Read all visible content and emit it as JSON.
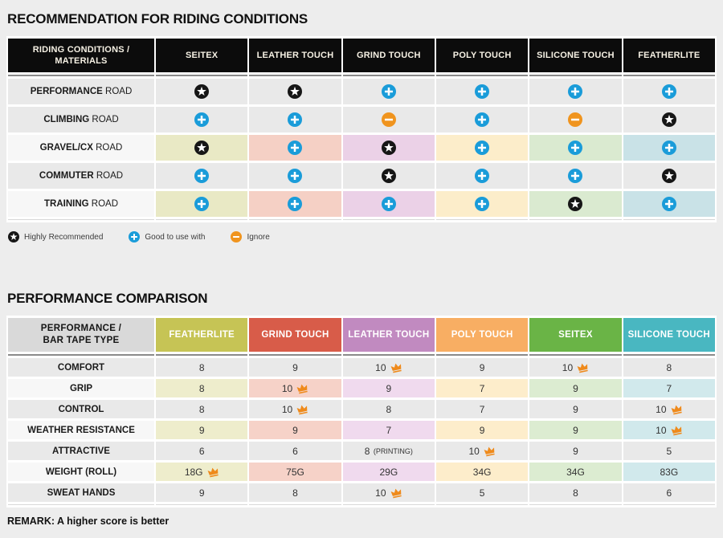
{
  "icons": {
    "star_bg": "#161616",
    "plus_bg": "#1a9cd9",
    "minus_bg": "#f0941e",
    "glyph": "#ffffff",
    "crown": "#ef8a1b"
  },
  "recommendation": {
    "title": "RECOMMENDATION FOR RIDING CONDITIONS",
    "corner": {
      "line1": "RIDING CONDITIONS /",
      "line2": "MATERIALS"
    },
    "columns": [
      {
        "label": "SEITEX",
        "tint": "#e9e9c5"
      },
      {
        "label": "LEATHER TOUCH",
        "tint": "#f5d0c5"
      },
      {
        "label": "GRIND TOUCH",
        "tint": "#ebd1e7"
      },
      {
        "label": "POLY TOUCH",
        "tint": "#fcedca"
      },
      {
        "label": "SILICONE TOUCH",
        "tint": "#daead0"
      },
      {
        "label": "FEATHERLITE",
        "tint": "#c9e2e7"
      }
    ],
    "rows": [
      {
        "name": "PERFORMANCE",
        "type": "ROAD",
        "tinted": false,
        "cells": [
          "star",
          "star",
          "plus",
          "plus",
          "plus",
          "plus"
        ]
      },
      {
        "name": "CLIMBING",
        "type": "ROAD",
        "tinted": false,
        "cells": [
          "plus",
          "plus",
          "minus",
          "plus",
          "minus",
          "star"
        ]
      },
      {
        "name": "GRAVEL/CX",
        "type": "ROAD",
        "tinted": true,
        "cells": [
          "star",
          "plus",
          "star",
          "plus",
          "plus",
          "plus"
        ]
      },
      {
        "name": "COMMUTER",
        "type": "ROAD",
        "tinted": false,
        "cells": [
          "plus",
          "plus",
          "star",
          "plus",
          "plus",
          "star"
        ]
      },
      {
        "name": "TRAINING",
        "type": "ROAD",
        "tinted": true,
        "cells": [
          "plus",
          "plus",
          "plus",
          "plus",
          "star",
          "plus"
        ]
      }
    ],
    "legend": [
      {
        "icon": "star",
        "label": "Highly Recommended"
      },
      {
        "icon": "plus",
        "label": "Good to use with"
      },
      {
        "icon": "minus",
        "label": "Ignore"
      }
    ]
  },
  "performance": {
    "title": "PERFORMANCE COMPARISON",
    "corner": {
      "line1": "PERFORMANCE /",
      "line2": "BAR TAPE TYPE"
    },
    "columns": [
      {
        "label": "FEATHERLITE",
        "color": "#c6c455",
        "tint": "#eeedcc"
      },
      {
        "label": "GRIND TOUCH",
        "color": "#d85c49",
        "tint": "#f6d2c8"
      },
      {
        "label": "LEATHER TOUCH",
        "color": "#c18ac0",
        "tint": "#f0daee"
      },
      {
        "label": "POLY TOUCH",
        "color": "#f8ae63",
        "tint": "#fdedcb"
      },
      {
        "label": "SEITEX",
        "color": "#6ab446",
        "tint": "#dcecd1"
      },
      {
        "label": "SILICONE TOUCH",
        "color": "#49b7c1",
        "tint": "#d1e9ec"
      }
    ],
    "rows": [
      {
        "label": "COMFORT",
        "tinted": false,
        "cells": [
          {
            "v": "8"
          },
          {
            "v": "9"
          },
          {
            "v": "10",
            "crown": true
          },
          {
            "v": "9"
          },
          {
            "v": "10",
            "crown": true
          },
          {
            "v": "8"
          }
        ]
      },
      {
        "label": "GRIP",
        "tinted": true,
        "cells": [
          {
            "v": "8"
          },
          {
            "v": "10",
            "crown": true
          },
          {
            "v": "9"
          },
          {
            "v": "7"
          },
          {
            "v": "9"
          },
          {
            "v": "7"
          }
        ]
      },
      {
        "label": "CONTROL",
        "tinted": false,
        "cells": [
          {
            "v": "8"
          },
          {
            "v": "10",
            "crown": true
          },
          {
            "v": "8"
          },
          {
            "v": "7"
          },
          {
            "v": "9"
          },
          {
            "v": "10",
            "crown": true
          }
        ]
      },
      {
        "label": "WEATHER RESISTANCE",
        "tinted": true,
        "cells": [
          {
            "v": "9"
          },
          {
            "v": "9"
          },
          {
            "v": "7"
          },
          {
            "v": "9"
          },
          {
            "v": "9"
          },
          {
            "v": "10",
            "crown": true
          }
        ]
      },
      {
        "label": "ATTRACTIVE",
        "tinted": false,
        "cells": [
          {
            "v": "6"
          },
          {
            "v": "6"
          },
          {
            "v": "8",
            "suffix": "(PRINTING)"
          },
          {
            "v": "10",
            "crown": true
          },
          {
            "v": "9"
          },
          {
            "v": "5"
          }
        ]
      },
      {
        "label": "WEIGHT (ROLL)",
        "tinted": true,
        "cells": [
          {
            "v": "18G",
            "crown": true
          },
          {
            "v": "75G"
          },
          {
            "v": "29G"
          },
          {
            "v": "34G"
          },
          {
            "v": "34G"
          },
          {
            "v": "83G"
          }
        ]
      },
      {
        "label": "SWEAT HANDS",
        "tinted": false,
        "cells": [
          {
            "v": "9"
          },
          {
            "v": "8"
          },
          {
            "v": "10",
            "crown": true
          },
          {
            "v": "5"
          },
          {
            "v": "8"
          },
          {
            "v": "6"
          }
        ]
      }
    ],
    "remark": "REMARK: A higher score is better"
  }
}
